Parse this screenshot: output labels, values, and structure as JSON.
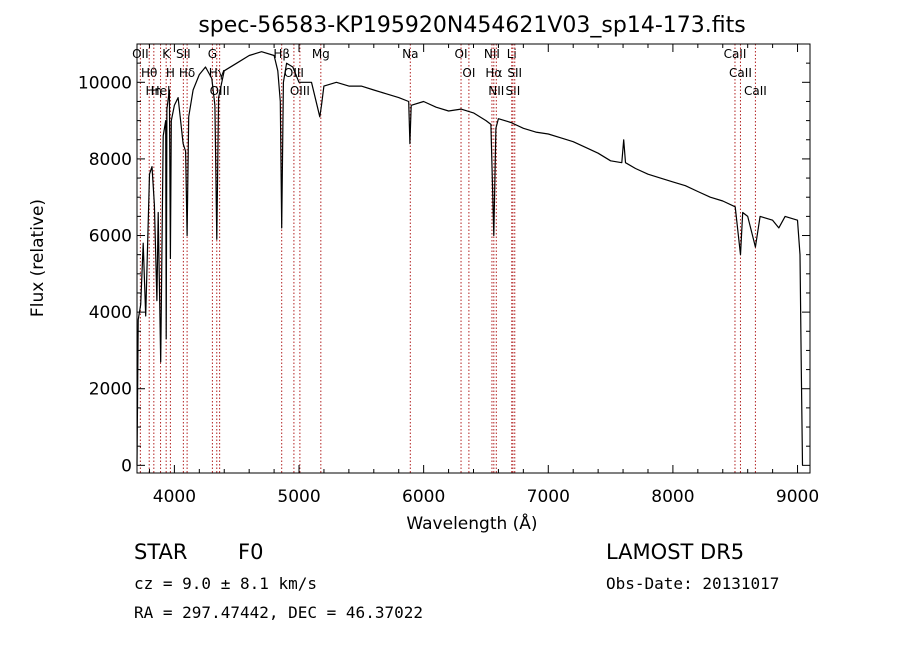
{
  "chart_data": {
    "type": "line",
    "title": "spec-56583-KP195920N454621V03_sp14-173.fits",
    "xlabel": "Wavelength (Å)",
    "ylabel": "Flux (relative)",
    "xlim": [
      3700,
      9100
    ],
    "ylim": [
      -200,
      11000
    ],
    "x_ticks": [
      4000,
      5000,
      6000,
      7000,
      8000,
      9000
    ],
    "y_ticks": [
      0,
      2000,
      4000,
      6000,
      8000,
      10000
    ],
    "grid": false,
    "series": [
      {
        "x": [
          3700,
          3710,
          3730,
          3750,
          3770,
          3800,
          3820,
          3840,
          3860,
          3870,
          3890,
          3910,
          3930,
          3934,
          3940,
          3960,
          3968,
          3975,
          4000,
          4030,
          4070,
          4090,
          4102,
          4115,
          4150,
          4200,
          4250,
          4300,
          4325,
          4340,
          4355,
          4400,
          4500,
          4600,
          4700,
          4800,
          4830,
          4850,
          4861,
          4875,
          4900,
          4950,
          5000,
          5100,
          5167,
          5180,
          5200,
          5300,
          5400,
          5500,
          5600,
          5700,
          5800,
          5880,
          5890,
          5900,
          6000,
          6100,
          6200,
          6300,
          6400,
          6500,
          6540,
          6563,
          6580,
          6600,
          6700,
          6800,
          6900,
          7000,
          7100,
          7200,
          7300,
          7400,
          7500,
          7590,
          7605,
          7620,
          7700,
          7800,
          7900,
          8000,
          8100,
          8200,
          8300,
          8400,
          8500,
          8542,
          8560,
          8600,
          8662,
          8700,
          8800,
          8850,
          8900,
          8950,
          9000,
          9020,
          9030,
          9040
        ],
        "y": [
          0,
          3800,
          4200,
          5800,
          3900,
          7600,
          7800,
          6800,
          4300,
          6600,
          2700,
          8600,
          9000,
          3300,
          9300,
          9800,
          5400,
          9000,
          9400,
          9600,
          8400,
          8200,
          6000,
          9100,
          9800,
          10200,
          10400,
          10100,
          9400,
          5900,
          9600,
          10300,
          10500,
          10700,
          10800,
          10700,
          10300,
          9500,
          6200,
          10000,
          10500,
          10400,
          10000,
          10000,
          9100,
          9400,
          9900,
          10000,
          9900,
          9900,
          9800,
          9700,
          9600,
          9500,
          8400,
          9400,
          9500,
          9350,
          9250,
          9300,
          9200,
          9000,
          8900,
          6000,
          8800,
          9050,
          8950,
          8800,
          8700,
          8650,
          8550,
          8450,
          8300,
          8150,
          7950,
          7900,
          8500,
          7900,
          7750,
          7600,
          7500,
          7400,
          7300,
          7150,
          7000,
          6900,
          6750,
          5500,
          6600,
          6500,
          5700,
          6500,
          6400,
          6200,
          6500,
          6450,
          6400,
          5500,
          2500,
          0
        ]
      }
    ],
    "line_markers": [
      {
        "wavelength": 3727,
        "label": "OII"
      },
      {
        "wavelength": 3798,
        "label": "Hθ"
      },
      {
        "wavelength": 3835,
        "label": "Hη"
      },
      {
        "wavelength": 3889,
        "label": "HeI"
      },
      {
        "wavelength": 3934,
        "label": "K"
      },
      {
        "wavelength": 3968,
        "label": "H"
      },
      {
        "wavelength": 4072,
        "label": "SII"
      },
      {
        "wavelength": 4102,
        "label": "Hδ"
      },
      {
        "wavelength": 4305,
        "label": "G"
      },
      {
        "wavelength": 4340,
        "label": "Hγ"
      },
      {
        "wavelength": 4363,
        "label": "OIII"
      },
      {
        "wavelength": 4861,
        "label": "Hβ"
      },
      {
        "wavelength": 4959,
        "label": "OIII"
      },
      {
        "wavelength": 5007,
        "label": "OIII"
      },
      {
        "wavelength": 5175,
        "label": "Mg"
      },
      {
        "wavelength": 5893,
        "label": "Na"
      },
      {
        "wavelength": 6300,
        "label": "OI"
      },
      {
        "wavelength": 6363,
        "label": "OI"
      },
      {
        "wavelength": 6548,
        "label": "NII"
      },
      {
        "wavelength": 6563,
        "label": "Hα"
      },
      {
        "wavelength": 6583,
        "label": "NII"
      },
      {
        "wavelength": 6707,
        "label": "Li"
      },
      {
        "wavelength": 6716,
        "label": "SII"
      },
      {
        "wavelength": 6731,
        "label": "SII"
      },
      {
        "wavelength": 8498,
        "label": "CaII"
      },
      {
        "wavelength": 8542,
        "label": "CaII"
      },
      {
        "wavelength": 8662,
        "label": "CaII"
      }
    ]
  },
  "info": {
    "class": "STAR",
    "subclass": "F0",
    "survey": "LAMOST DR5",
    "redshift": "cz = 9.0 ± 8.1 km/s",
    "obs_date": "Obs-Date: 20131017",
    "coords": "RA = 297.47442, DEC =  46.37022"
  }
}
